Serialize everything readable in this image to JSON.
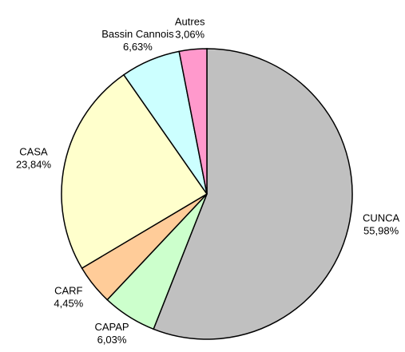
{
  "chart_data": {
    "type": "pie",
    "categories": [
      "CUNCA",
      "CAPAP",
      "CARF",
      "CASA",
      "Bassin Cannois",
      "Autres"
    ],
    "values": [
      55.98,
      6.03,
      4.45,
      23.84,
      6.63,
      3.06
    ],
    "value_labels": [
      "55,98%",
      "6,03%",
      "4,45%",
      "23,84%",
      "6,63%",
      "3,06%"
    ],
    "colors": [
      "#c0c0c0",
      "#ccffcc",
      "#ffcc99",
      "#ffffcc",
      "#ccffff",
      "#ff99cc"
    ]
  }
}
